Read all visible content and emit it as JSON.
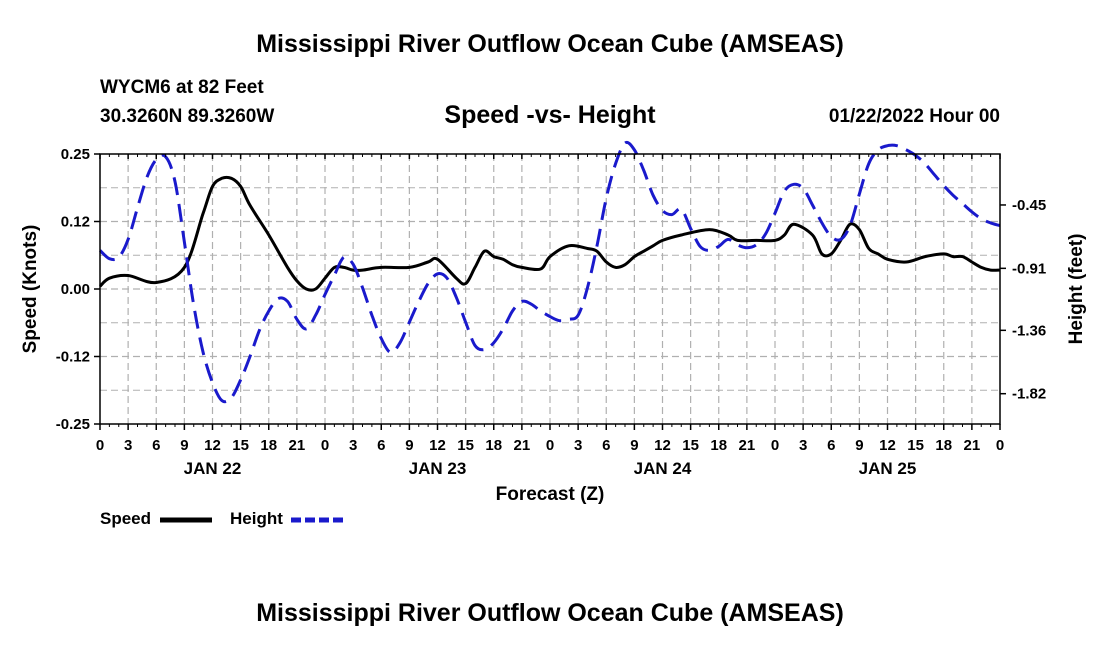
{
  "header": {
    "title": "Mississippi River Outflow Ocean Cube (AMSEAS)",
    "station": "WYCM6 at 82 Feet",
    "coords": "30.3260N  89.3260W",
    "subtitle": "Speed -vs- Height",
    "datetime": "01/22/2022 Hour 00"
  },
  "footer": {
    "title": "Mississippi River Outflow Ocean Cube (AMSEAS)"
  },
  "legend": {
    "speed_label": "Speed",
    "height_label": "Height"
  },
  "colors": {
    "speed": "#000000",
    "height": "#1a1acc",
    "grid": "#b0b0b0"
  },
  "chart_data": {
    "type": "line",
    "title": "Speed -vs- Height",
    "xlabel": "Forecast (Z)",
    "ylabel": "Speed (Knots)",
    "y2label": "Height (feet)",
    "x_hours": [
      0,
      96
    ],
    "x_tick_labels": [
      "0",
      "3",
      "6",
      "9",
      "12",
      "15",
      "18",
      "21",
      "0",
      "3",
      "6",
      "9",
      "12",
      "15",
      "18",
      "21",
      "0",
      "3",
      "6",
      "9",
      "12",
      "15",
      "18",
      "21",
      "0",
      "3",
      "6",
      "9",
      "12",
      "15",
      "18",
      "21",
      "0"
    ],
    "day_labels": [
      {
        "hour": 12,
        "label": "JAN 22"
      },
      {
        "hour": 36,
        "label": "JAN 23"
      },
      {
        "hour": 60,
        "label": "JAN 24"
      },
      {
        "hour": 84,
        "label": "JAN 25"
      }
    ],
    "ylim": [
      -0.25,
      0.25
    ],
    "y_ticks": [
      "0.25",
      "0.12",
      "0.00",
      "-0.12",
      "-0.25"
    ],
    "y_tick_values": [
      0.25,
      0.125,
      0.0,
      -0.125,
      -0.25
    ],
    "y2lim": [
      -2.04,
      -0.08
    ],
    "y2_ticks": [
      "-0.45",
      "-0.91",
      "-1.36",
      "-1.82"
    ],
    "y2_tick_values": [
      -0.45,
      -0.91,
      -1.36,
      -1.82
    ],
    "series": [
      {
        "name": "Speed",
        "axis": "left",
        "x": [
          0,
          1,
          3,
          6,
          9,
          11,
          12,
          13,
          14,
          15,
          16,
          18,
          20,
          21,
          22,
          23,
          24,
          25,
          26,
          27,
          28,
          30,
          33,
          35,
          36,
          38,
          39,
          40,
          41,
          42,
          43,
          44,
          45,
          47,
          48,
          50,
          52,
          53,
          54,
          55,
          56,
          57,
          58,
          59,
          60,
          62,
          65,
          67,
          68,
          70,
          72,
          73,
          74,
          76,
          77,
          78,
          79,
          80,
          81,
          82,
          83,
          84,
          86,
          88,
          90,
          91,
          92,
          93,
          94,
          95,
          96
        ],
        "values": [
          0.005,
          0.02,
          0.025,
          0.012,
          0.04,
          0.14,
          0.19,
          0.205,
          0.205,
          0.19,
          0.155,
          0.1,
          0.04,
          0.015,
          0.0,
          0.0,
          0.02,
          0.04,
          0.04,
          0.035,
          0.035,
          0.04,
          0.04,
          0.05,
          0.055,
          0.02,
          0.01,
          0.04,
          0.07,
          0.06,
          0.055,
          0.045,
          0.04,
          0.037,
          0.06,
          0.08,
          0.075,
          0.07,
          0.05,
          0.04,
          0.045,
          0.06,
          0.07,
          0.08,
          0.09,
          0.1,
          0.11,
          0.1,
          0.09,
          0.09,
          0.09,
          0.1,
          0.12,
          0.1,
          0.065,
          0.065,
          0.09,
          0.12,
          0.11,
          0.075,
          0.065,
          0.055,
          0.05,
          0.06,
          0.065,
          0.06,
          0.06,
          0.05,
          0.04,
          0.035,
          0.035
        ]
      },
      {
        "name": "Height",
        "axis": "right",
        "x": [
          0,
          1,
          2,
          3,
          4,
          5,
          6,
          7,
          8,
          9,
          10,
          11,
          12,
          13,
          14,
          15,
          16,
          17,
          18,
          19,
          20,
          21,
          22,
          23,
          24,
          25,
          26,
          27,
          28,
          29,
          30,
          31,
          32,
          33,
          34,
          35,
          36,
          37,
          38,
          39,
          40,
          41,
          42,
          43,
          44,
          45,
          46,
          47,
          48,
          49,
          50,
          51,
          52,
          53,
          54,
          55,
          56,
          57,
          58,
          59,
          60,
          61,
          62,
          63,
          64,
          65,
          66,
          67,
          68,
          69,
          70,
          71,
          72,
          73,
          74,
          75,
          76,
          77,
          78,
          79,
          80,
          81,
          82,
          83,
          84,
          85,
          86,
          87,
          88,
          89,
          90,
          91,
          92,
          93,
          94,
          95,
          96
        ],
        "values": [
          -0.78,
          -0.84,
          -0.83,
          -0.7,
          -0.47,
          -0.25,
          -0.12,
          -0.1,
          -0.28,
          -0.72,
          -1.18,
          -1.52,
          -1.74,
          -1.87,
          -1.85,
          -1.72,
          -1.55,
          -1.36,
          -1.22,
          -1.13,
          -1.15,
          -1.28,
          -1.35,
          -1.25,
          -1.1,
          -0.96,
          -0.83,
          -0.88,
          -1.05,
          -1.25,
          -1.42,
          -1.52,
          -1.45,
          -1.3,
          -1.15,
          -1.02,
          -0.95,
          -0.98,
          -1.12,
          -1.3,
          -1.47,
          -1.5,
          -1.45,
          -1.35,
          -1.22,
          -1.15,
          -1.17,
          -1.22,
          -1.26,
          -1.29,
          -1.28,
          -1.25,
          -1.05,
          -0.75,
          -0.4,
          -0.15,
          -0.0,
          -0.05,
          -0.2,
          -0.38,
          -0.49,
          -0.52,
          -0.48,
          -0.62,
          -0.75,
          -0.78,
          -0.75,
          -0.7,
          -0.74,
          -0.76,
          -0.74,
          -0.66,
          -0.51,
          -0.35,
          -0.3,
          -0.33,
          -0.45,
          -0.58,
          -0.68,
          -0.7,
          -0.6,
          -0.37,
          -0.15,
          -0.05,
          -0.02,
          -0.02,
          -0.05,
          -0.09,
          -0.15,
          -0.23,
          -0.31,
          -0.38,
          -0.44,
          -0.5,
          -0.55,
          -0.58,
          -0.6
        ]
      }
    ],
    "grid": true,
    "legend_position": "bottom-left"
  }
}
